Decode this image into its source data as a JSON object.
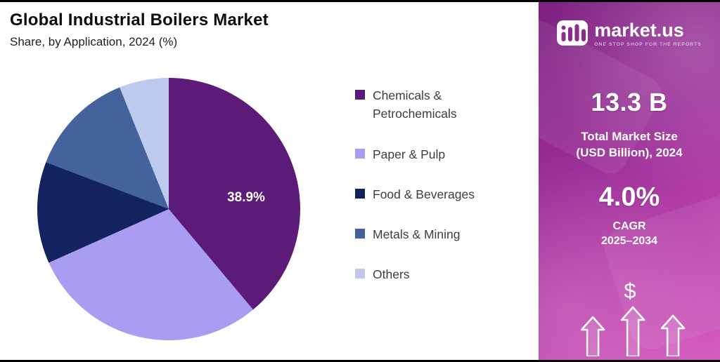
{
  "header": {
    "title": "Global Industrial Boilers Market",
    "subtitle": "Share, by Application, 2024 (%)"
  },
  "chart_data": {
    "type": "pie",
    "title": "Global Industrial Boilers Market",
    "subtitle": "Share, by Application, 2024 (%)",
    "unit": "%",
    "start_angle_deg": 0,
    "direction": "clockwise",
    "legend_position": "right",
    "shown_label": "38.9%",
    "series": [
      {
        "label": "Chemicals & Petrochemicals",
        "value": 38.9,
        "color": "#5c1a79"
      },
      {
        "label": "Paper & Pulp",
        "value": 29.4,
        "color": "#a89df1"
      },
      {
        "label": "Food & Beverages",
        "value": 12.5,
        "color": "#13235f"
      },
      {
        "label": "Metals & Mining",
        "value": 13.1,
        "color": "#44639c"
      },
      {
        "label": "Others",
        "value": 6.1,
        "color": "#bdc9ed"
      }
    ]
  },
  "panel": {
    "brand": {
      "wordmark": "market.us",
      "tagline": "ONE STOP SHOP FOR THE REPORTS"
    },
    "market_size": {
      "value": "13.3 B",
      "label_line1": "Total Market Size",
      "label_line2": "(USD Billion), 2024"
    },
    "cagr": {
      "value": "4.0%",
      "label_line1": "CAGR",
      "label_line2": "2025–2034"
    },
    "dollar_symbol": "$",
    "colors": {
      "gradient_start": "#7c2180",
      "gradient_end": "#d55cc0"
    }
  }
}
